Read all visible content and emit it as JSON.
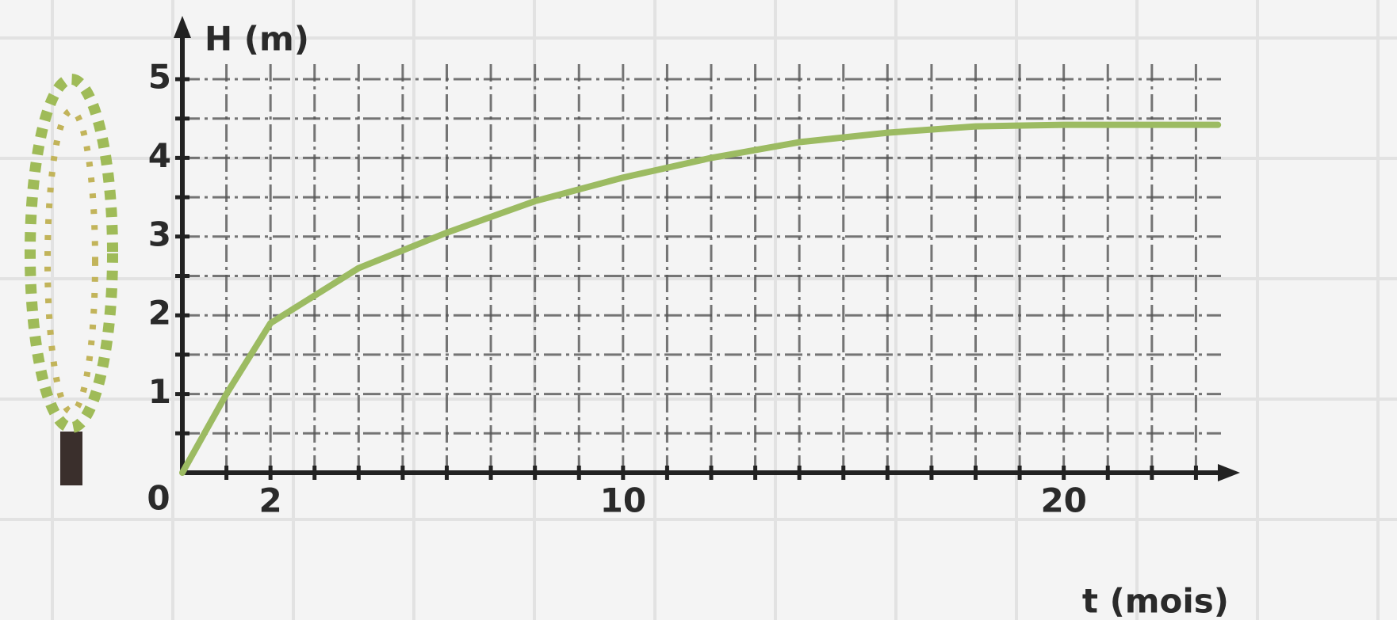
{
  "chart_data": {
    "type": "line",
    "y_label": "H (m)",
    "x_label": "t (mois)",
    "origin_label": "0",
    "x": [
      0,
      1,
      2,
      4,
      6,
      8,
      10,
      12,
      14,
      16,
      18,
      20,
      22,
      23.5
    ],
    "series": [
      {
        "color": "#9cbb62",
        "values": [
          0,
          1.0,
          1.9,
          2.6,
          3.05,
          3.45,
          3.75,
          4.0,
          4.2,
          4.32,
          4.4,
          4.42,
          4.42,
          4.42
        ]
      }
    ],
    "xlim": [
      0,
      24
    ],
    "ylim": [
      0,
      5
    ],
    "xticks": [
      2,
      10,
      20
    ],
    "yticks": [
      1,
      2,
      3,
      4,
      5
    ],
    "xminorticks": [
      1,
      2,
      3,
      4,
      5,
      6,
      7,
      8,
      9,
      10,
      11,
      12,
      13,
      14,
      15,
      16,
      17,
      18,
      19,
      20,
      21,
      22,
      23
    ],
    "yminorticks": [
      0.5,
      1,
      1.5,
      2,
      2.5,
      3,
      3.5,
      4,
      4.5,
      5
    ],
    "grid": true
  }
}
